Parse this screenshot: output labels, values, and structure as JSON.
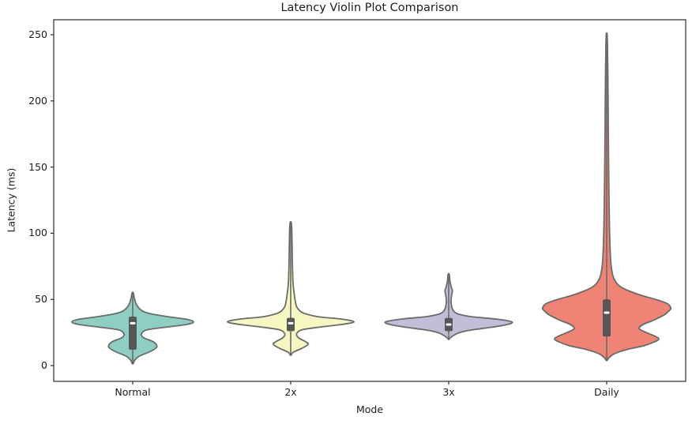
{
  "chart_data": {
    "type": "violin",
    "title": "Latency Violin Plot Comparison",
    "xlabel": "Mode",
    "ylabel": "Latency (ms)",
    "categories": [
      "Normal",
      "2x",
      "3x",
      "Daily"
    ],
    "y_ticks": [
      0,
      50,
      100,
      150,
      200,
      250
    ],
    "ylim": [
      -12,
      261
    ],
    "grid": false,
    "legend": "none",
    "style": {
      "background": "#ffffff",
      "spine_color": "#2b2b2b",
      "tick_color": "#2b2b2b",
      "text_color": "#1c1c1c",
      "violin_edge_color": "#6b6b6b",
      "inner_box_color": "#565656",
      "median_color": "#ffffff"
    },
    "violins": [
      {
        "label": "Normal",
        "color": "#8fcfc3",
        "data_range_ms": [
          2,
          55
        ],
        "modes_ms": [
          15,
          33
        ],
        "box": {
          "q1": 12,
          "median": 32,
          "q3": 37
        },
        "whisker": [
          2,
          55
        ],
        "profile": [
          [
            1.5,
            0.7
          ],
          [
            4,
            2.5
          ],
          [
            7,
            8
          ],
          [
            10,
            20
          ],
          [
            13,
            29
          ],
          [
            15,
            30.5
          ],
          [
            18,
            26
          ],
          [
            21,
            14
          ],
          [
            24,
            11
          ],
          [
            27,
            18
          ],
          [
            29,
            42
          ],
          [
            31,
            68
          ],
          [
            33,
            77
          ],
          [
            35,
            68
          ],
          [
            37,
            44
          ],
          [
            39,
            24
          ],
          [
            41,
            13
          ],
          [
            44,
            7
          ],
          [
            47,
            4
          ],
          [
            51,
            2
          ],
          [
            55,
            0.7
          ]
        ]
      },
      {
        "label": "2x",
        "color": "#f6f6c2",
        "data_range_ms": [
          8,
          108
        ],
        "modes_ms": [
          17,
          33
        ],
        "box": {
          "q1": 26,
          "median": 32,
          "q3": 36
        },
        "whisker": [
          8,
          108
        ],
        "profile": [
          [
            8,
            0.7
          ],
          [
            10,
            3
          ],
          [
            13,
            14
          ],
          [
            16,
            22
          ],
          [
            18,
            19
          ],
          [
            21,
            10
          ],
          [
            24,
            7.5
          ],
          [
            27,
            14
          ],
          [
            29,
            36
          ],
          [
            31,
            64
          ],
          [
            33,
            80
          ],
          [
            35,
            66
          ],
          [
            37,
            34
          ],
          [
            40,
            15
          ],
          [
            44,
            8
          ],
          [
            48,
            6
          ],
          [
            54,
            4.5
          ],
          [
            62,
            3
          ],
          [
            75,
            2.2
          ],
          [
            90,
            1.8
          ],
          [
            102,
            1.4
          ],
          [
            108,
            0.7
          ]
        ]
      },
      {
        "label": "3x",
        "color": "#c1bed8",
        "data_range_ms": [
          20,
          69
        ],
        "modes_ms": [
          33,
          57
        ],
        "box": {
          "q1": 26,
          "median": 31,
          "q3": 36
        },
        "whisker": [
          20,
          69
        ],
        "profile": [
          [
            20,
            0.7
          ],
          [
            22,
            4
          ],
          [
            25,
            14
          ],
          [
            27,
            30
          ],
          [
            29,
            55
          ],
          [
            31,
            74
          ],
          [
            33,
            80
          ],
          [
            35,
            62
          ],
          [
            37,
            28
          ],
          [
            39,
            12
          ],
          [
            41,
            6.5
          ],
          [
            44,
            4
          ],
          [
            48,
            3
          ],
          [
            52,
            3.4
          ],
          [
            55,
            4.4
          ],
          [
            57,
            4.6
          ],
          [
            59,
            3.4
          ],
          [
            62,
            2.2
          ],
          [
            65,
            1.4
          ],
          [
            69,
            0.7
          ]
        ]
      },
      {
        "label": "Daily",
        "color": "#ee8376",
        "data_range_ms": [
          4,
          250
        ],
        "modes_ms": [
          20,
          44
        ],
        "box": {
          "q1": 22,
          "median": 40,
          "q3": 50
        },
        "whisker": [
          4,
          250
        ],
        "profile": [
          [
            4,
            0.7
          ],
          [
            6,
            3
          ],
          [
            9,
            10
          ],
          [
            12,
            25
          ],
          [
            15,
            47
          ],
          [
            18,
            61
          ],
          [
            20,
            66
          ],
          [
            22,
            62
          ],
          [
            25,
            50
          ],
          [
            28,
            41
          ],
          [
            31,
            46
          ],
          [
            34,
            58
          ],
          [
            38,
            72
          ],
          [
            42,
            80
          ],
          [
            44,
            81
          ],
          [
            47,
            76
          ],
          [
            50,
            62
          ],
          [
            53,
            44
          ],
          [
            56,
            30
          ],
          [
            59,
            19
          ],
          [
            62,
            13
          ],
          [
            66,
            9
          ],
          [
            70,
            7
          ],
          [
            78,
            5.2
          ],
          [
            90,
            4.2
          ],
          [
            105,
            3.5
          ],
          [
            125,
            3
          ],
          [
            150,
            2.5
          ],
          [
            175,
            2.1
          ],
          [
            200,
            1.8
          ],
          [
            220,
            1.5
          ],
          [
            238,
            1.1
          ],
          [
            250,
            0.6
          ]
        ]
      }
    ]
  }
}
